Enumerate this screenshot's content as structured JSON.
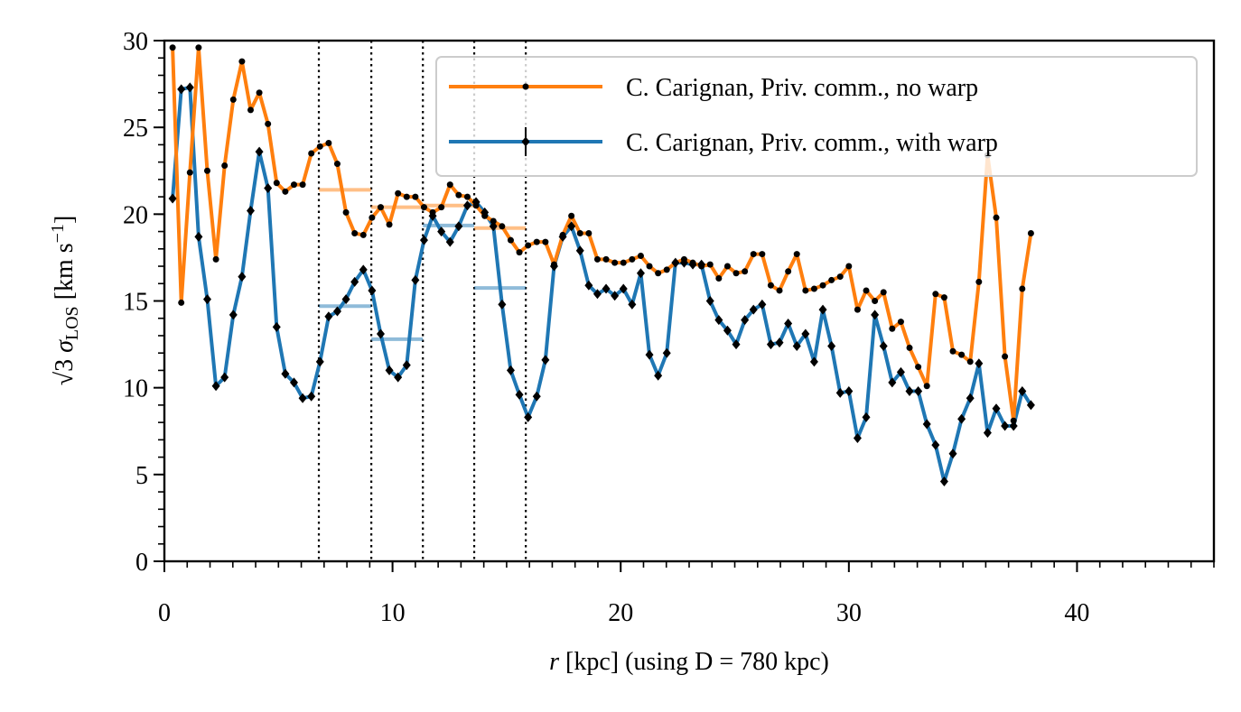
{
  "chart_data": {
    "type": "line",
    "xlabel": [
      "r",
      " [kpc] (using D = 780 kpc)"
    ],
    "ylabel": [
      "√3",
      " σ",
      "LOS",
      " [km s",
      "−1",
      "]"
    ],
    "x": [
      0.36,
      0.74,
      1.12,
      1.5,
      1.88,
      2.26,
      2.64,
      3.02,
      3.4,
      3.78,
      4.16,
      4.54,
      4.92,
      5.3,
      5.68,
      6.06,
      6.44,
      6.82,
      7.2,
      7.58,
      7.96,
      8.34,
      8.72,
      9.1,
      9.48,
      9.86,
      10.24,
      10.62,
      11.0,
      11.38,
      11.76,
      12.14,
      12.52,
      12.9,
      13.28,
      13.66,
      14.04,
      14.42,
      14.8,
      15.18,
      15.56,
      15.94,
      16.32,
      16.7,
      17.08,
      17.46,
      17.84,
      18.22,
      18.6,
      18.98,
      19.36,
      19.74,
      20.12,
      20.5,
      20.88,
      21.26,
      21.64,
      22.02,
      22.4,
      22.78,
      23.16,
      23.54,
      23.92,
      24.3,
      24.68,
      25.06,
      25.44,
      25.82,
      26.2,
      26.58,
      26.96,
      27.34,
      27.72,
      28.1,
      28.48,
      28.86,
      29.24,
      29.62,
      30.0,
      30.38,
      30.76,
      31.14,
      31.52,
      31.9,
      32.28,
      32.66,
      33.04,
      33.42,
      33.8,
      34.18,
      34.56,
      34.94,
      35.32,
      35.7,
      36.08,
      36.46,
      36.84,
      37.22,
      37.6,
      37.98
    ],
    "series": [
      {
        "name": "C. Carignan, Priv. comm., no warp",
        "color": "#ff7f0e",
        "marker": "circle",
        "values": [
          29.6,
          14.9,
          22.4,
          29.6,
          22.5,
          17.4,
          22.8,
          26.6,
          28.8,
          26.0,
          27.0,
          25.2,
          21.8,
          21.3,
          21.7,
          21.7,
          23.5,
          23.9,
          24.1,
          22.9,
          20.1,
          18.9,
          18.8,
          19.8,
          20.4,
          19.4,
          21.2,
          21.0,
          21.0,
          20.4,
          20.1,
          20.4,
          21.7,
          21.1,
          21.0,
          20.5,
          19.9,
          19.6,
          19.3,
          18.5,
          17.8,
          18.2,
          18.4,
          18.4,
          17.1,
          18.8,
          19.9,
          18.9,
          18.9,
          17.4,
          17.4,
          17.2,
          17.2,
          17.4,
          17.6,
          17.0,
          16.6,
          16.8,
          17.2,
          17.4,
          17.2,
          17.0,
          17.1,
          16.3,
          17.0,
          16.6,
          16.7,
          17.7,
          17.7,
          15.9,
          15.6,
          16.7,
          17.7,
          15.6,
          15.7,
          15.9,
          16.2,
          16.4,
          17.0,
          14.5,
          15.6,
          15.0,
          15.5,
          13.4,
          13.8,
          12.3,
          11.2,
          10.1,
          15.4,
          15.2,
          12.1,
          11.9,
          11.5,
          16.1,
          23.4,
          19.8,
          11.8,
          8.1,
          15.7,
          18.9
        ],
        "bin_values": [
          21.4,
          20.4,
          20.5,
          19.2
        ]
      },
      {
        "name": "C. Carignan, Priv. comm., with warp",
        "color": "#1f77b4",
        "marker": "diamond",
        "values": [
          20.9,
          27.2,
          27.3,
          18.7,
          15.1,
          10.1,
          10.6,
          14.2,
          16.4,
          20.2,
          23.6,
          21.5,
          13.5,
          10.8,
          10.3,
          9.4,
          9.5,
          11.5,
          14.1,
          14.4,
          15.1,
          16.1,
          16.8,
          15.6,
          13.1,
          11.0,
          10.6,
          11.3,
          16.2,
          18.5,
          19.9,
          19.0,
          18.4,
          19.3,
          20.5,
          20.7,
          20.1,
          19.3,
          14.8,
          11.0,
          9.6,
          8.3,
          9.5,
          11.6,
          17.0,
          18.7,
          19.3,
          17.9,
          15.9,
          15.4,
          15.7,
          15.3,
          15.7,
          14.8,
          16.6,
          11.9,
          10.7,
          12.0,
          17.2,
          17.2,
          17.1,
          17.1,
          15.0,
          13.9,
          13.3,
          12.5,
          13.9,
          14.5,
          14.8,
          12.5,
          12.6,
          13.7,
          12.4,
          13.1,
          11.5,
          14.5,
          12.4,
          9.7,
          9.8,
          7.1,
          8.3,
          14.2,
          12.4,
          10.3,
          10.9,
          9.8,
          9.8,
          7.9,
          6.7,
          4.6,
          6.2,
          8.2,
          9.4,
          11.4,
          7.4,
          8.8,
          7.8,
          7.8,
          9.8,
          9.0
        ],
        "bin_values": [
          14.7,
          12.8,
          19.35,
          15.75
        ]
      }
    ],
    "vlines": [
      6.77,
      9.07,
      11.33,
      13.58,
      15.84
    ],
    "xlim": [
      0,
      46
    ],
    "xticks": [
      0,
      10,
      20,
      30,
      40
    ],
    "xminor_step": 1,
    "ylim": [
      0,
      30
    ],
    "yticks": [
      0,
      5,
      10,
      15,
      20,
      25,
      30
    ],
    "yminor_step": 1,
    "legend": "upper right"
  }
}
